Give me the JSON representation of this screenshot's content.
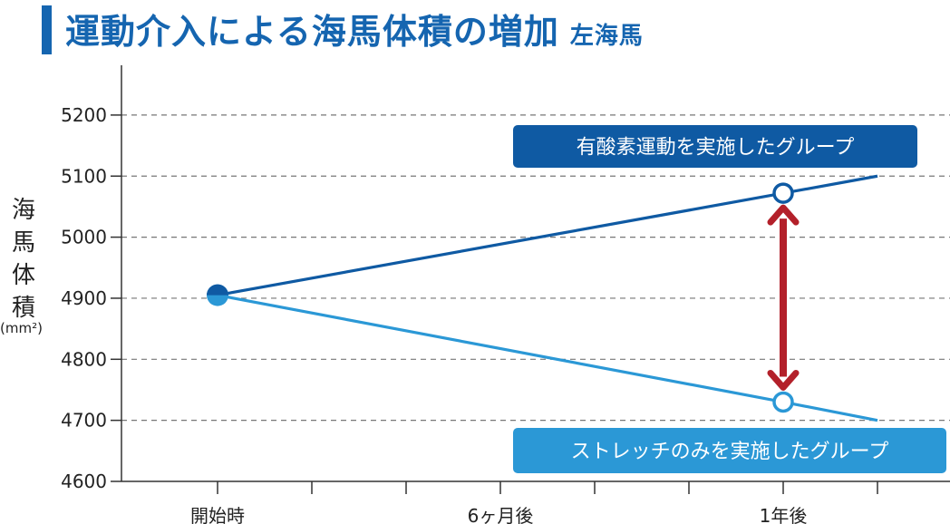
{
  "header": {
    "title": "運動介入による海馬体積の増加",
    "subtitle": "左海馬"
  },
  "colors": {
    "accent": "#1565b0",
    "aerobic": "#0f5aa3",
    "stretch": "#2b98d6",
    "arrow": "#b3202a",
    "grid": "#777777"
  },
  "chart_data": {
    "type": "line",
    "ylabel": "海馬体積",
    "ylabel_unit": "(mm²)",
    "ylim": [
      4600,
      5250
    ],
    "yticks": [
      4600,
      4700,
      4800,
      4900,
      5000,
      5100,
      5200
    ],
    "x_ticks": [
      "開始時",
      "",
      "",
      "6ヶ月後",
      "",
      "",
      "1年後",
      ""
    ],
    "x_tick_labels": [
      {
        "x": 0,
        "label": "開始時"
      },
      {
        "x": 3,
        "label": "6ヶ月後"
      },
      {
        "x": 6,
        "label": "1年後"
      }
    ],
    "xlim": [
      -1,
      7
    ],
    "grid": true,
    "series": [
      {
        "name": "有酸素運動を実施したグループ",
        "points": [
          [
            0,
            4905
          ],
          [
            6,
            5072
          ],
          [
            7,
            5100
          ]
        ],
        "markers": [
          {
            "x": 0,
            "y": 4905,
            "style": "filled"
          },
          {
            "x": 6,
            "y": 5072,
            "style": "hollow"
          }
        ]
      },
      {
        "name": "ストレッチのみを実施したグループ",
        "points": [
          [
            0,
            4905
          ],
          [
            6,
            4730
          ],
          [
            7,
            4700
          ]
        ],
        "markers": [
          {
            "x": 6,
            "y": 4730,
            "style": "hollow"
          }
        ]
      }
    ],
    "annotation": {
      "type": "double-arrow",
      "x": 6,
      "y_from": 5072,
      "y_to": 4730
    }
  }
}
